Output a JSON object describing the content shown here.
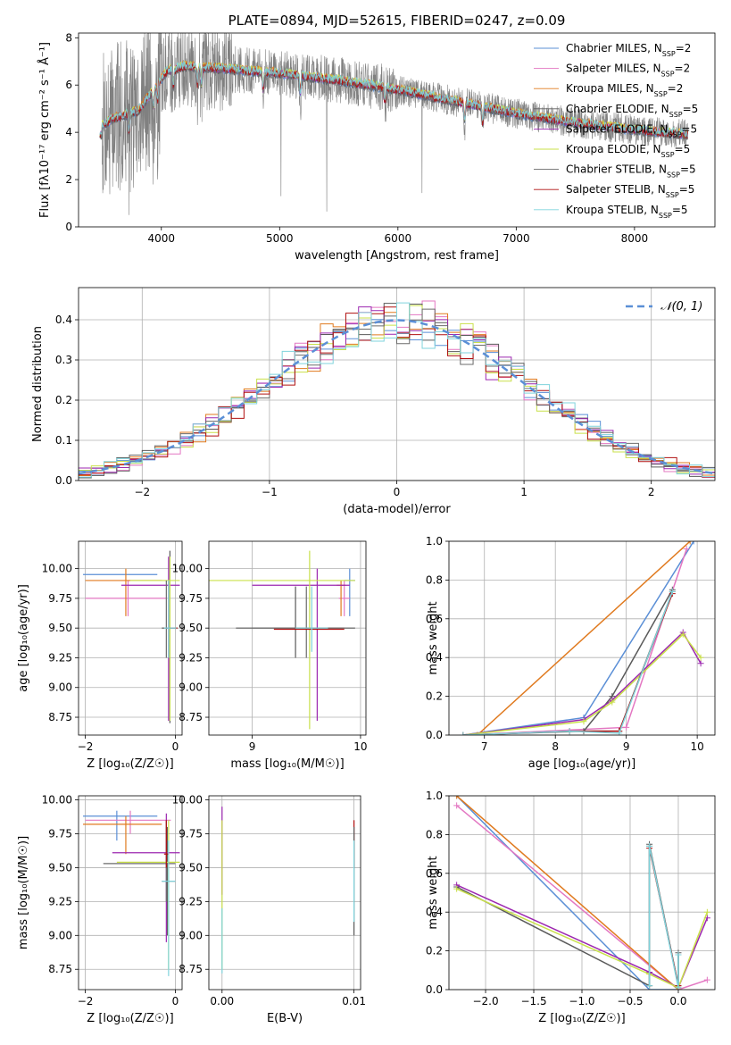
{
  "colors": {
    "chabrier_miles": "#5b8fd6",
    "salpeter_miles": "#e377c2",
    "kroupa_miles": "#e07a1f",
    "chabrier_elodie": "#5a5a5a",
    "salpeter_elodie": "#9c27b0",
    "kroupa_elodie": "#c9e04a",
    "chabrier_stelib": "#6b6b6b",
    "salpeter_stelib": "#b01010",
    "kroupa_stelib": "#7fd3dc",
    "data": "#808080",
    "gauss": "#5b8fd6"
  },
  "chart_data": [
    {
      "type": "line",
      "title": "PLATE=0894, MJD=52615, FIBERID=0247, z=0.09",
      "xlabel": "wavelength [Angstrom, rest frame]",
      "ylabel": "Flux [fλ10⁻¹⁷ erg cm⁻² s⁻¹ Å⁻¹]",
      "xlim": [
        3300,
        8680
      ],
      "ylim": [
        0,
        8.2
      ],
      "xticks": [
        4000,
        5000,
        6000,
        7000,
        8000
      ],
      "yticks": [
        0,
        2,
        4,
        6,
        8
      ],
      "legend_position": "top-right",
      "legend": [
        {
          "label": "Chabrier MILES, N",
          "sub": "SSP",
          "tail": "=2",
          "color_key": "chabrier_miles"
        },
        {
          "label": "Salpeter MILES, N",
          "sub": "SSP",
          "tail": "=2",
          "color_key": "salpeter_miles"
        },
        {
          "label": "Kroupa MILES, N",
          "sub": "SSP",
          "tail": "=2",
          "color_key": "kroupa_miles"
        },
        {
          "label": "Chabrier ELODIE, N",
          "sub": "SSP",
          "tail": "=5",
          "color_key": "chabrier_elodie"
        },
        {
          "label": "Salpeter ELODIE, N",
          "sub": "SSP",
          "tail": "=5",
          "color_key": "salpeter_elodie"
        },
        {
          "label": "Kroupa ELODIE, N",
          "sub": "SSP",
          "tail": "=5",
          "color_key": "kroupa_elodie"
        },
        {
          "label": "Chabrier STELIB, N",
          "sub": "SSP",
          "tail": "=5",
          "color_key": "chabrier_stelib"
        },
        {
          "label": "Salpeter STELIB, N",
          "sub": "SSP",
          "tail": "=5",
          "color_key": "salpeter_stelib"
        },
        {
          "label": "Kroupa STELIB, N",
          "sub": "SSP",
          "tail": "=5",
          "color_key": "kroupa_stelib"
        }
      ],
      "spectrum_range": [
        3500,
        8450
      ],
      "model_continuum": {
        "x": [
          3500,
          3600,
          3800,
          3950,
          4050,
          4200,
          4500,
          5000,
          5500,
          6000,
          6500,
          7000,
          7500,
          8000,
          8450
        ],
        "y": [
          4.3,
          4.6,
          4.9,
          5.9,
          6.6,
          6.8,
          6.7,
          6.5,
          6.2,
          5.8,
          5.3,
          4.8,
          4.4,
          4.1,
          3.9
        ]
      },
      "absorption_lines": [
        3727,
        3933,
        3968,
        4102,
        4304,
        4340,
        4861,
        5175,
        5890,
        6563,
        6717
      ]
    },
    {
      "type": "line",
      "xlabel": "(data-model)/error",
      "ylabel": "Normed distribution",
      "xlim": [
        -2.5,
        2.5
      ],
      "ylim": [
        0,
        0.48
      ],
      "xticks": [
        -2,
        -1,
        0,
        1,
        2
      ],
      "yticks": [
        0.0,
        0.1,
        0.2,
        0.3,
        0.4
      ],
      "grid": true,
      "legend_position": "top-right",
      "gauss_label": "𝒩(0, 1)",
      "bin_width": 0.1
    },
    {
      "type": "scatter",
      "xlabel": "Z [log₁₀(Z/Z☉)]",
      "ylabel": "age  [log₁₀(age/yr)]",
      "xlim": [
        -2.15,
        0.15
      ],
      "ylim": [
        8.6,
        10.23
      ],
      "xticks": [
        -2,
        0
      ],
      "yticks": [
        8.75,
        9.0,
        9.25,
        9.5,
        9.75,
        10.0
      ],
      "grid": true,
      "errorbars": [
        {
          "c": "chabrier_miles",
          "x": -1.3,
          "xe": [
            -2.05,
            -0.4
          ],
          "y": 9.95,
          "ye": [
            9.95,
            9.95
          ]
        },
        {
          "c": "salpeter_miles",
          "x": -1.05,
          "xe": [
            -2.0,
            -0.2
          ],
          "y": 9.75,
          "ye": [
            9.6,
            9.9
          ]
        },
        {
          "c": "kroupa_miles",
          "x": -1.1,
          "xe": [
            -2.0,
            -0.3
          ],
          "y": 9.9,
          "ye": [
            9.6,
            10.0
          ]
        },
        {
          "c": "chabrier_elodie",
          "x": -0.12,
          "xe": [
            -0.3,
            0.0
          ],
          "y": 9.5,
          "ye": [
            8.7,
            10.15
          ]
        },
        {
          "c": "salpeter_elodie",
          "x": -0.15,
          "xe": [
            -1.2,
            0.1
          ],
          "y": 9.86,
          "ye": [
            8.72,
            10.1
          ]
        },
        {
          "c": "kroupa_elodie",
          "x": -0.12,
          "xe": [
            -1.0,
            0.1
          ],
          "y": 9.9,
          "ye": [
            8.72,
            10.1
          ]
        },
        {
          "c": "chabrier_stelib",
          "x": -0.2,
          "xe": [
            -0.25,
            -0.18
          ],
          "y": 9.5,
          "ye": [
            9.25,
            9.9
          ]
        },
        {
          "c": "salpeter_stelib",
          "x": -0.1,
          "xe": [
            -0.2,
            0.05
          ],
          "y": 9.5,
          "ye": [
            9.5,
            9.5
          ]
        },
        {
          "c": "kroupa_stelib",
          "x": -0.15,
          "xe": [
            -0.25,
            0.02
          ],
          "y": 9.5,
          "ye": [
            9.25,
            9.9
          ]
        }
      ]
    },
    {
      "type": "scatter",
      "xlabel": "mass [log₁₀(M/M☉)]",
      "xlim": [
        8.6,
        10.05
      ],
      "ylim": [
        8.6,
        10.23
      ],
      "xticks": [
        9,
        10
      ],
      "yticks": [
        8.75,
        9.0,
        9.25,
        9.5,
        9.75,
        10.0
      ],
      "grid": true,
      "errorbars": [
        {
          "c": "chabrier_miles",
          "x": 9.9,
          "xe": [
            9.85,
            9.95
          ],
          "y": 9.9,
          "ye": [
            9.6,
            10.0
          ]
        },
        {
          "c": "salpeter_miles",
          "x": 9.85,
          "xe": [
            9.8,
            9.9
          ],
          "y": 9.75,
          "ye": [
            9.6,
            9.9
          ]
        },
        {
          "c": "kroupa_miles",
          "x": 9.82,
          "xe": [
            9.78,
            9.86
          ],
          "y": 9.86,
          "ye": [
            9.6,
            9.9
          ]
        },
        {
          "c": "chabrier_elodie",
          "x": 9.4,
          "xe": [
            8.85,
            9.95
          ],
          "y": 9.5,
          "ye": [
            9.25,
            9.85
          ]
        },
        {
          "c": "salpeter_elodie",
          "x": 9.6,
          "xe": [
            9.0,
            9.9
          ],
          "y": 9.86,
          "ye": [
            8.72,
            10.0
          ]
        },
        {
          "c": "kroupa_elodie",
          "x": 9.53,
          "xe": [
            8.6,
            9.95
          ],
          "y": 9.9,
          "ye": [
            8.65,
            10.15
          ]
        },
        {
          "c": "chabrier_stelib",
          "x": 9.5,
          "xe": [
            9.0,
            9.85
          ],
          "y": 9.5,
          "ye": [
            9.25,
            9.85
          ]
        },
        {
          "c": "salpeter_stelib",
          "x": 9.6,
          "xe": [
            9.2,
            9.85
          ],
          "y": 9.49,
          "ye": [
            9.49,
            9.49
          ]
        },
        {
          "c": "kroupa_stelib",
          "x": 9.55,
          "xe": [
            9.4,
            9.7
          ],
          "y": 9.5,
          "ye": [
            9.3,
            9.85
          ]
        }
      ]
    },
    {
      "type": "line",
      "xlabel": "age  [log₁₀(age/yr)]",
      "ylabel": "mass weight",
      "xlim": [
        6.5,
        10.25
      ],
      "ylim": [
        0,
        1.0
      ],
      "xticks": [
        7,
        8,
        9,
        10
      ],
      "yticks": [
        0.0,
        0.2,
        0.4,
        0.6,
        0.8,
        1.0
      ],
      "grid": true,
      "series": [
        {
          "c": "chabrier_miles",
          "x": [
            6.7,
            8.4,
            9.95
          ],
          "y": [
            0.0,
            0.09,
            1.0
          ]
        },
        {
          "c": "salpeter_miles",
          "x": [
            6.7,
            9.0,
            9.85
          ],
          "y": [
            0.0,
            0.04,
            0.96
          ]
        },
        {
          "c": "kroupa_miles",
          "x": [
            6.9,
            9.9
          ],
          "y": [
            0.0,
            1.0
          ]
        },
        {
          "c": "chabrier_elodie",
          "x": [
            6.7,
            8.4,
            8.8,
            9.65
          ],
          "y": [
            0.0,
            0.02,
            0.2,
            0.75
          ]
        },
        {
          "c": "salpeter_elodie",
          "x": [
            6.7,
            8.4,
            8.8,
            9.8,
            10.05
          ],
          "y": [
            0.0,
            0.08,
            0.18,
            0.53,
            0.37
          ]
        },
        {
          "c": "kroupa_elodie",
          "x": [
            6.7,
            8.4,
            8.8,
            9.8,
            10.05
          ],
          "y": [
            0.0,
            0.07,
            0.17,
            0.52,
            0.4
          ]
        },
        {
          "c": "chabrier_stelib",
          "x": [
            6.7,
            8.2,
            8.9,
            9.65
          ],
          "y": [
            0.0,
            0.02,
            0.02,
            0.74
          ]
        },
        {
          "c": "salpeter_stelib",
          "x": [
            6.7,
            8.2,
            8.9,
            9.65
          ],
          "y": [
            0.0,
            0.02,
            0.02,
            0.73
          ]
        },
        {
          "c": "kroupa_stelib",
          "x": [
            6.7,
            8.2,
            8.9,
            9.65
          ],
          "y": [
            0.0,
            0.02,
            0.01,
            0.74
          ]
        }
      ]
    },
    {
      "type": "scatter",
      "xlabel": "Z [log₁₀(Z/Z☉)]",
      "ylabel": "mass [log₁₀(M/M☉)]",
      "xlim": [
        -2.15,
        0.15
      ],
      "ylim": [
        8.6,
        10.03
      ],
      "xticks": [
        -2,
        0
      ],
      "yticks": [
        8.75,
        9.0,
        9.25,
        9.5,
        9.75,
        10.0
      ],
      "grid": true,
      "errorbars": [
        {
          "c": "chabrier_miles",
          "x": -1.3,
          "xe": [
            -2.05,
            -0.4
          ],
          "y": 9.88,
          "ye": [
            9.7,
            9.92
          ]
        },
        {
          "c": "salpeter_miles",
          "x": -1.0,
          "xe": [
            -2.0,
            -0.1
          ],
          "y": 9.85,
          "ye": [
            9.75,
            9.92
          ]
        },
        {
          "c": "kroupa_miles",
          "x": -1.1,
          "xe": [
            -2.05,
            -0.3
          ],
          "y": 9.82,
          "ye": [
            9.6,
            9.88
          ]
        },
        {
          "c": "chabrier_elodie",
          "x": -0.18,
          "xe": [
            -0.3,
            0.0
          ],
          "y": 9.4,
          "ye": [
            9.0,
            9.8
          ]
        },
        {
          "c": "salpeter_elodie",
          "x": -0.2,
          "xe": [
            -1.4,
            0.1
          ],
          "y": 9.61,
          "ye": [
            8.95,
            9.9
          ]
        },
        {
          "c": "kroupa_elodie",
          "x": -0.15,
          "xe": [
            -1.3,
            0.1
          ],
          "y": 9.54,
          "ye": [
            8.75,
            9.85
          ]
        },
        {
          "c": "chabrier_stelib",
          "x": -0.2,
          "xe": [
            -1.6,
            0.0
          ],
          "y": 9.53,
          "ye": [
            9.25,
            9.85
          ]
        },
        {
          "c": "salpeter_stelib",
          "x": -0.2,
          "xe": [
            -0.25,
            -0.15
          ],
          "y": 9.6,
          "ye": [
            9.5,
            9.85
          ]
        },
        {
          "c": "kroupa_stelib",
          "x": -0.15,
          "xe": [
            -0.3,
            0.0
          ],
          "y": 9.4,
          "ye": [
            8.7,
            9.7
          ]
        }
      ]
    },
    {
      "type": "scatter",
      "xlabel": "E(B-V)",
      "xlim": [
        -0.001,
        0.0105
      ],
      "ylim": [
        8.6,
        10.03
      ],
      "xticks": [
        0.0,
        0.01
      ],
      "xtick_labels": [
        "0.00",
        "0.01"
      ],
      "yticks": [
        8.75,
        9.0,
        9.25,
        9.5,
        9.75,
        10.0
      ],
      "grid": true,
      "errorbars": [
        {
          "c": "salpeter_elodie",
          "x": 0.0,
          "xe": [
            0.0,
            0.0
          ],
          "y": 9.6,
          "ye": [
            9.3,
            9.95
          ]
        },
        {
          "c": "kroupa_elodie",
          "x": 0.0,
          "xe": [
            0.0,
            0.0
          ],
          "y": 9.3,
          "ye": [
            8.75,
            9.85
          ]
        },
        {
          "c": "kroupa_stelib",
          "x": 0.0,
          "xe": [
            0.0,
            0.0
          ],
          "y": 9.0,
          "ye": [
            8.72,
            9.2
          ]
        },
        {
          "c": "salpeter_stelib",
          "x": 0.01,
          "xe": [
            0.01,
            0.01
          ],
          "y": 9.6,
          "ye": [
            9.5,
            9.85
          ]
        },
        {
          "c": "chabrier_elodie",
          "x": 0.01,
          "xe": [
            0.01,
            0.01
          ],
          "y": 9.4,
          "ye": [
            9.0,
            9.8
          ]
        },
        {
          "c": "kroupa_stelib",
          "x": 0.01,
          "xe": [
            0.01,
            0.01
          ],
          "y": 9.4,
          "ye": [
            9.1,
            9.7
          ]
        }
      ]
    },
    {
      "type": "line",
      "xlabel": "Z [log₁₀(Z/Z☉)]",
      "ylabel": "mass weight",
      "xlim": [
        -2.38,
        0.38
      ],
      "ylim": [
        0,
        1.0
      ],
      "xticks": [
        -2.0,
        -1.5,
        -1.0,
        -0.5,
        0.0
      ],
      "xtick_labels": [
        "−2.0",
        "−1.5",
        "−1.0",
        "−0.5",
        "0.0"
      ],
      "yticks": [
        0.0,
        0.2,
        0.4,
        0.6,
        0.8,
        1.0
      ],
      "grid": true,
      "series": [
        {
          "c": "chabrier_miles",
          "x": [
            -2.3,
            -0.3,
            0.0
          ],
          "y": [
            1.0,
            0.0,
            0.0
          ]
        },
        {
          "c": "salpeter_miles",
          "x": [
            -2.3,
            0.0,
            0.3
          ],
          "y": [
            0.95,
            0.0,
            0.05
          ]
        },
        {
          "c": "kroupa_miles",
          "x": [
            -2.3,
            0.0
          ],
          "y": [
            1.0,
            0.0
          ]
        },
        {
          "c": "chabrier_elodie",
          "x": [
            -2.3,
            -0.3,
            -0.3,
            0.0,
            0.0
          ],
          "y": [
            0.53,
            0.02,
            0.75,
            0.02,
            0.19
          ]
        },
        {
          "c": "salpeter_elodie",
          "x": [
            -2.3,
            -0.3,
            0.0,
            0.3
          ],
          "y": [
            0.54,
            0.09,
            0.01,
            0.37
          ]
        },
        {
          "c": "kroupa_elodie",
          "x": [
            -2.3,
            -0.3,
            0.0,
            0.3
          ],
          "y": [
            0.52,
            0.08,
            0.01,
            0.4
          ]
        },
        {
          "c": "chabrier_stelib",
          "x": [
            -0.3,
            -0.3,
            0.0,
            0.0
          ],
          "y": [
            0.02,
            0.74,
            0.02,
            0.18
          ]
        },
        {
          "c": "salpeter_stelib",
          "x": [
            -0.3,
            0.0
          ],
          "y": [
            0.73,
            0.02
          ]
        },
        {
          "c": "kroupa_stelib",
          "x": [
            -0.3,
            -0.3,
            0.0,
            0.0
          ],
          "y": [
            0.02,
            0.74,
            0.01,
            0.18
          ]
        }
      ]
    }
  ]
}
